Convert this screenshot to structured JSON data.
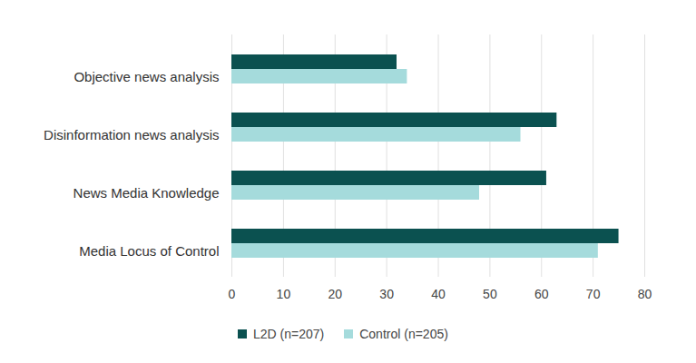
{
  "chart_data": {
    "type": "bar",
    "orientation": "horizontal",
    "categories": [
      "Objective news analysis",
      "Disinformation news analysis",
      "News Media Knowledge",
      "Media Locus of Control"
    ],
    "series": [
      {
        "name": "L2D (n=207)",
        "color": "#0b5150",
        "values": [
          32,
          63,
          61,
          75
        ]
      },
      {
        "name": "Control (n=205)",
        "color": "#a5dbdc",
        "values": [
          34,
          56,
          48,
          71
        ]
      }
    ],
    "xlim": [
      0,
      80
    ],
    "xticks": [
      0,
      10,
      20,
      30,
      40,
      50,
      60,
      70,
      80
    ],
    "grid": true,
    "legend": "bottom"
  }
}
